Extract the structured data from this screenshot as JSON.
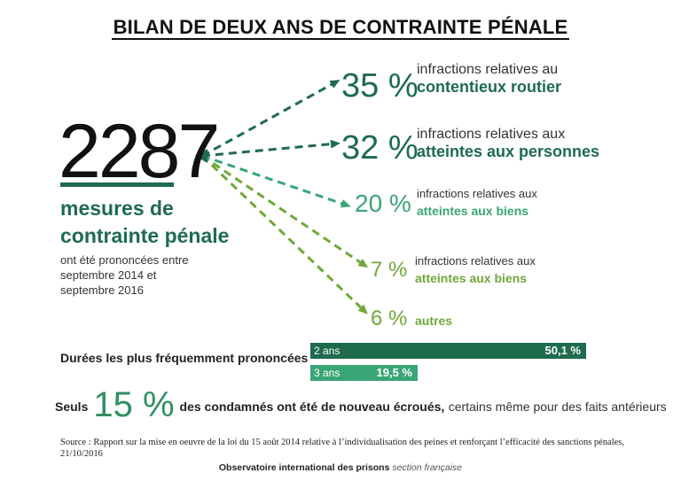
{
  "title": "BILAN DE DEUX ANS DE CONTRAINTE PÉNALE",
  "total": {
    "number": "2287",
    "label_line1": "mesures de",
    "label_line2": "contrainte pénale",
    "sub_line1": "ont été prononcées entre",
    "sub_line2": "septembre 2014 et",
    "sub_line3": "septembre 2016"
  },
  "colors": {
    "dark_green": "#1e6b4e",
    "mid_green": "#3aa576",
    "light_green": "#6fa83a",
    "bar_dark": "#1e6b4e",
    "bar_light": "#3aa576"
  },
  "chart_data": [
    {
      "type": "bar",
      "title": "",
      "categories": [
        "contentieux routier",
        "atteintes aux personnes",
        "atteintes aux biens",
        "atteintes aux biens",
        "autres"
      ],
      "values": [
        35,
        32,
        20,
        7,
        6
      ],
      "unit": "%",
      "items": [
        {
          "pct": "35 %",
          "line1": "infractions relatives au",
          "line2": "contentieux routier",
          "value": 35
        },
        {
          "pct": "32 %",
          "line1": "infractions  relatives aux",
          "line2": "atteintes aux personnes",
          "value": 32
        },
        {
          "pct": "20 %",
          "line1": "infractions  relatives aux",
          "line2": "atteintes aux biens",
          "value": 20
        },
        {
          "pct": "7 %",
          "line1": "infractions  relatives aux",
          "line2": "atteintes aux biens",
          "value": 7
        },
        {
          "pct": "6 %",
          "line1": "",
          "line2": "autres",
          "value": 6
        }
      ]
    },
    {
      "type": "bar",
      "title": "Durées les plus fréquemment prononcées",
      "categories": [
        "2 ans",
        "3 ans"
      ],
      "values": [
        50.1,
        19.5
      ],
      "value_labels": [
        "50,1 %",
        "19,5 %"
      ],
      "unit": "%",
      "xlim": [
        0,
        100
      ]
    }
  ],
  "recidive": {
    "word": "Seuls",
    "pct": "15 %",
    "bold_text": "des condamnés ont été de nouveau écroués,",
    "rest_text": "certains même pour des faits antérieurs"
  },
  "source": "Source : Rapport sur la mise en oeuvre de la loi du 15 août 2014 relative à l’individualisation des peines et renforçant l’efficacité des sanctions pénales, 21/10/2016",
  "footer": {
    "org": "Observatoire international des prisons",
    "section": "section française"
  }
}
